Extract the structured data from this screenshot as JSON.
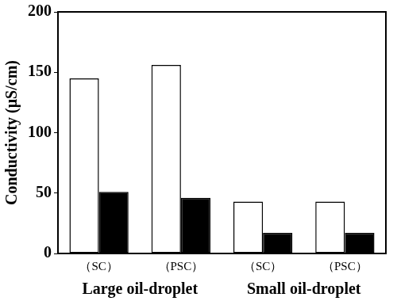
{
  "chart_data": {
    "type": "bar",
    "y_label": "Conductivity (μS/cm)",
    "categories": [
      "（SC）",
      "（PSC）",
      "（SC）",
      "（PSC）"
    ],
    "category_groups": [
      "Large oil-droplet",
      "Small oil-droplet"
    ],
    "series": [
      {
        "color": "#ffffff",
        "values": [
          145,
          156,
          43,
          43
        ]
      },
      {
        "color": "#000000",
        "values": [
          51,
          46,
          17,
          17
        ]
      }
    ],
    "ylim": [
      0,
      200
    ],
    "yticks": [
      0,
      50,
      100,
      150,
      200
    ],
    "grid": false
  }
}
